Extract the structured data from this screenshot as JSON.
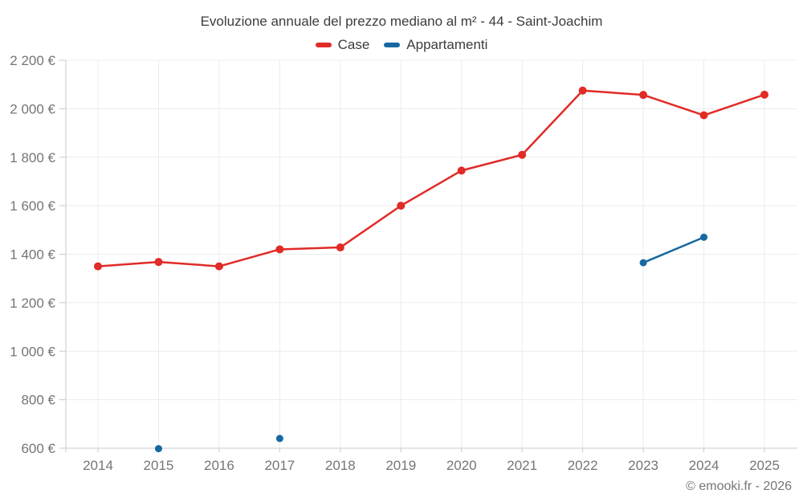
{
  "title": "Evoluzione annuale del prezzo mediano al m² - 44 - Saint-Joachim",
  "legend": [
    {
      "label": "Case",
      "color": "#e02b27"
    },
    {
      "label": "Appartamenti",
      "color": "#1668a2"
    }
  ],
  "footer": "© emooki.fr - 2026",
  "colors": {
    "case_series": "#e02b27",
    "appartamenti_series": "#1668a2",
    "grid": "#ececec",
    "axis": "#c9c9c9",
    "tick_label": "#757575",
    "title_text": "#3c3c3c",
    "legend_text": "#3c3c3c",
    "footer_text": "#757575"
  },
  "chart_data": {
    "type": "line",
    "x": [
      2014,
      2015,
      2016,
      2017,
      2018,
      2019,
      2020,
      2021,
      2022,
      2023,
      2024,
      2025
    ],
    "series": [
      {
        "name": "Case",
        "color": "#e02b27",
        "point_radius": 5,
        "values": [
          1350,
          1368,
          1350,
          1420,
          1428,
          1600,
          1745,
          1810,
          2075,
          2057,
          1973,
          2058
        ]
      },
      {
        "name": "Appartamenti",
        "color": "#1668a2",
        "point_radius": 4.5,
        "values": [
          null,
          598,
          null,
          640,
          null,
          null,
          null,
          null,
          null,
          1365,
          1470,
          null
        ]
      }
    ],
    "title": "Evoluzione annuale del prezzo mediano al m² - 44 - Saint-Joachim",
    "xlabel": "",
    "ylabel": "",
    "ylim": [
      600,
      2200
    ],
    "y_ticks": [
      600,
      800,
      1000,
      1200,
      1400,
      1600,
      1800,
      2000,
      2200
    ],
    "y_tick_labels": [
      "600 €",
      "800 €",
      "1 000 €",
      "1 200 €",
      "1 400 €",
      "1 600 €",
      "1 800 €",
      "2 000 €",
      "2 200 €"
    ],
    "grid": true,
    "legend_position": "top"
  }
}
